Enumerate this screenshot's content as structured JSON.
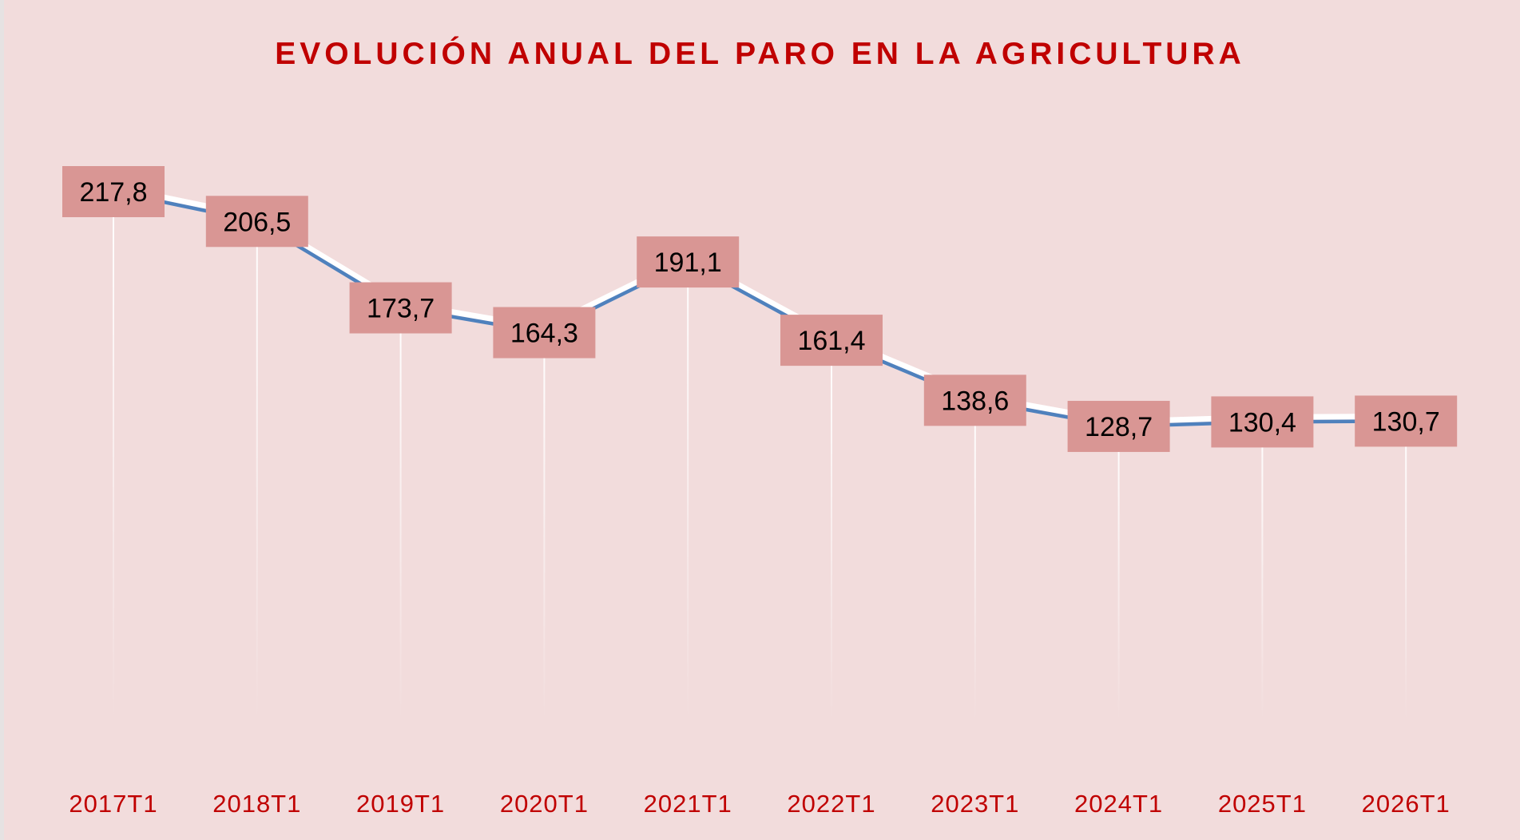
{
  "chart_data": {
    "type": "line",
    "title": "EVOLUCIÓN ANUAL DEL PARO EN LA AGRICULTURA",
    "categories": [
      "2017T1",
      "2018T1",
      "2019T1",
      "2020T1",
      "2021T1",
      "2022T1",
      "2023T1",
      "2024T1",
      "2025T1",
      "2026T1"
    ],
    "values": [
      217.8,
      206.5,
      173.7,
      164.3,
      191.1,
      161.4,
      138.6,
      128.7,
      130.4,
      130.7
    ],
    "value_labels": [
      "217,8",
      "206,5",
      "173,7",
      "164,3",
      "191,1",
      "161,4",
      "138,6",
      "128,7",
      "130,4",
      "130,7"
    ],
    "xlabel": "",
    "ylabel": "",
    "grid": false,
    "legend": "none",
    "colors": {
      "background": "#f2dcdc",
      "line": "#4f81bd",
      "label_box": "#d99694",
      "title": "#c00000",
      "axis_text": "#c00000"
    }
  }
}
